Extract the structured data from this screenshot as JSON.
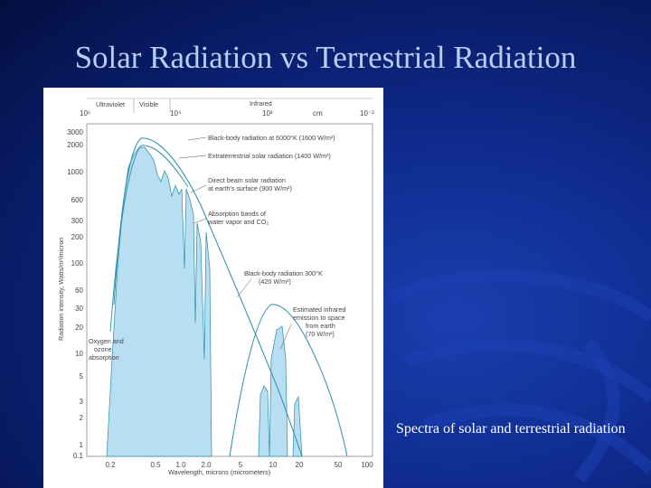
{
  "slide": {
    "title": "Solar Radiation vs Terrestrial Radiation",
    "caption": "Spectra of solar and terrestrial radiation"
  },
  "colors": {
    "background": "#0b2070",
    "title": "#b9cdf2",
    "caption": "#ffffff",
    "fill": "#b8def2",
    "curve": "#2a8ca8"
  },
  "figure": {
    "bands": [
      "Ultraviolet",
      "Visible",
      "Infrared"
    ],
    "top_ticks": [
      "10⁵",
      "10⁴",
      "10³",
      "cm",
      "10⁻²"
    ],
    "y_axis_label": "Radiation intensity, Watts/m²/micron",
    "x_axis_label": "Wavelength, microns (micrometers)",
    "y_ticks": [
      "3000",
      "2000",
      "1000",
      "600",
      "300",
      "200",
      "100",
      "60",
      "30",
      "20",
      "10",
      "5",
      "3",
      "2",
      "1",
      "0.1"
    ],
    "x_ticks": [
      "0.2",
      "0.5",
      "1.0",
      "2.0",
      "5",
      "10",
      "20",
      "50",
      "100"
    ],
    "annotations": {
      "bb6000": "Black-body radiation at 6000°K (1600 W/m²)",
      "extra": "Extraterrestrial solar radiation (1400 W/m²)",
      "direct1": "Direct beam solar radiation",
      "direct2": "at earth's surface (900 W/m²)",
      "abs1": "Absorption bands of",
      "abs2": "water vapor and CO₂",
      "bb300_1": "Black-body radiation 300°K",
      "bb300_2": "(420 W/m²)",
      "ir1": "Estimated infrared",
      "ir2": "emission to space",
      "ir3": "from earth",
      "ir4": "(70 W/m²)",
      "oz1": "Oxygen and",
      "oz2": "ozone",
      "oz3": "absorption"
    }
  }
}
